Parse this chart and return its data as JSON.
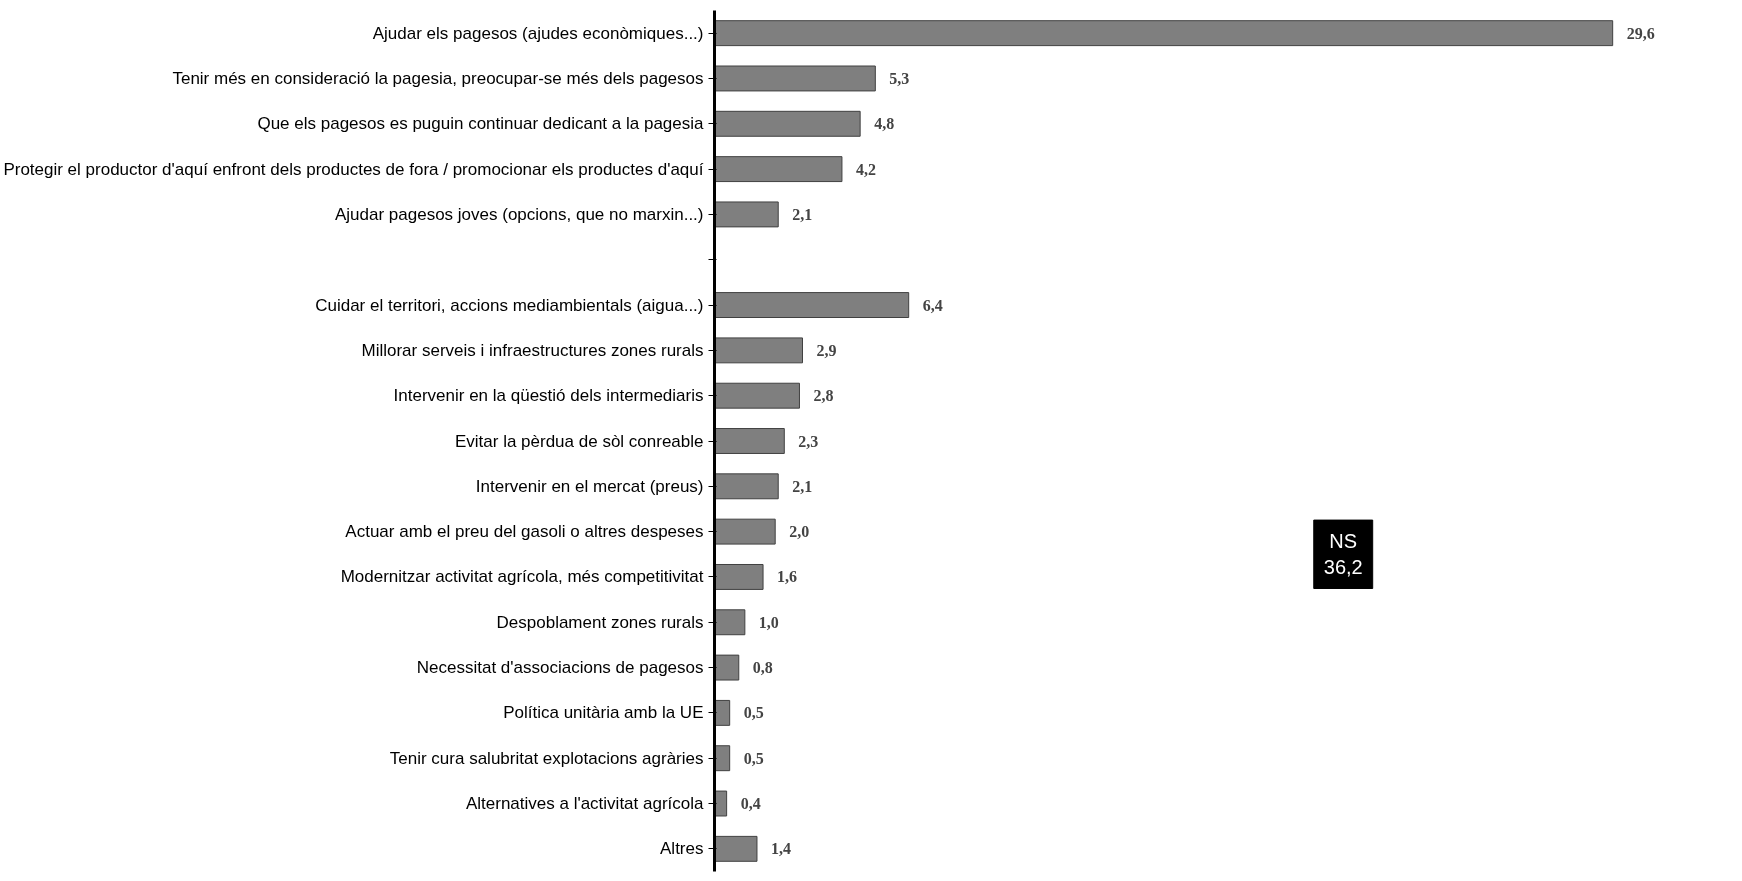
{
  "chart_data": {
    "type": "bar",
    "orientation": "horizontal",
    "categories": [
      "Ajudar els pagesos (ajudes econòmiques...)",
      "Tenir més en consideració la pagesia, preocupar-se més dels pagesos",
      "Que els pagesos es puguin continuar dedicant a la pagesia",
      "Protegir el productor d'aquí enfront dels productes de fora / promocionar els productes d'aquí",
      "Ajudar pagesos joves (opcions, que no marxin...)",
      null,
      "Cuidar el territori, accions mediambientals (aigua...)",
      "Millorar serveis i infraestructures zones rurals",
      "Intervenir en la qüestió dels intermediaris",
      "Evitar la pèrdua de sòl conreable",
      "Intervenir en el mercat (preus)",
      "Actuar amb el preu del gasoli o altres despeses",
      "Modernitzar activitat agrícola, més competitivitat",
      "Despoblament zones rurals",
      "Necessitat d'associacions de pagesos",
      "Política unitària amb la UE",
      "Tenir cura salubritat explotacions agràries",
      "Alternatives a l'activitat agrícola",
      "Altres"
    ],
    "values": [
      29.6,
      5.3,
      4.8,
      4.2,
      2.1,
      null,
      6.4,
      2.9,
      2.8,
      2.3,
      2.1,
      2.0,
      1.6,
      1.0,
      0.8,
      0.5,
      0.5,
      0.4,
      1.4
    ],
    "value_labels": [
      "29,6",
      "5,3",
      "4,8",
      "4,2",
      "2,1",
      null,
      "6,4",
      "2,9",
      "2,8",
      "2,3",
      "2,1",
      "2,0",
      "1,6",
      "1,0",
      "0,8",
      "0,5",
      "0,5",
      "0,4",
      "1,4"
    ],
    "color": "#7f7f7f",
    "tick_labels": "y",
    "grid": false,
    "annotations": [
      "NS\n36,2"
    ]
  }
}
